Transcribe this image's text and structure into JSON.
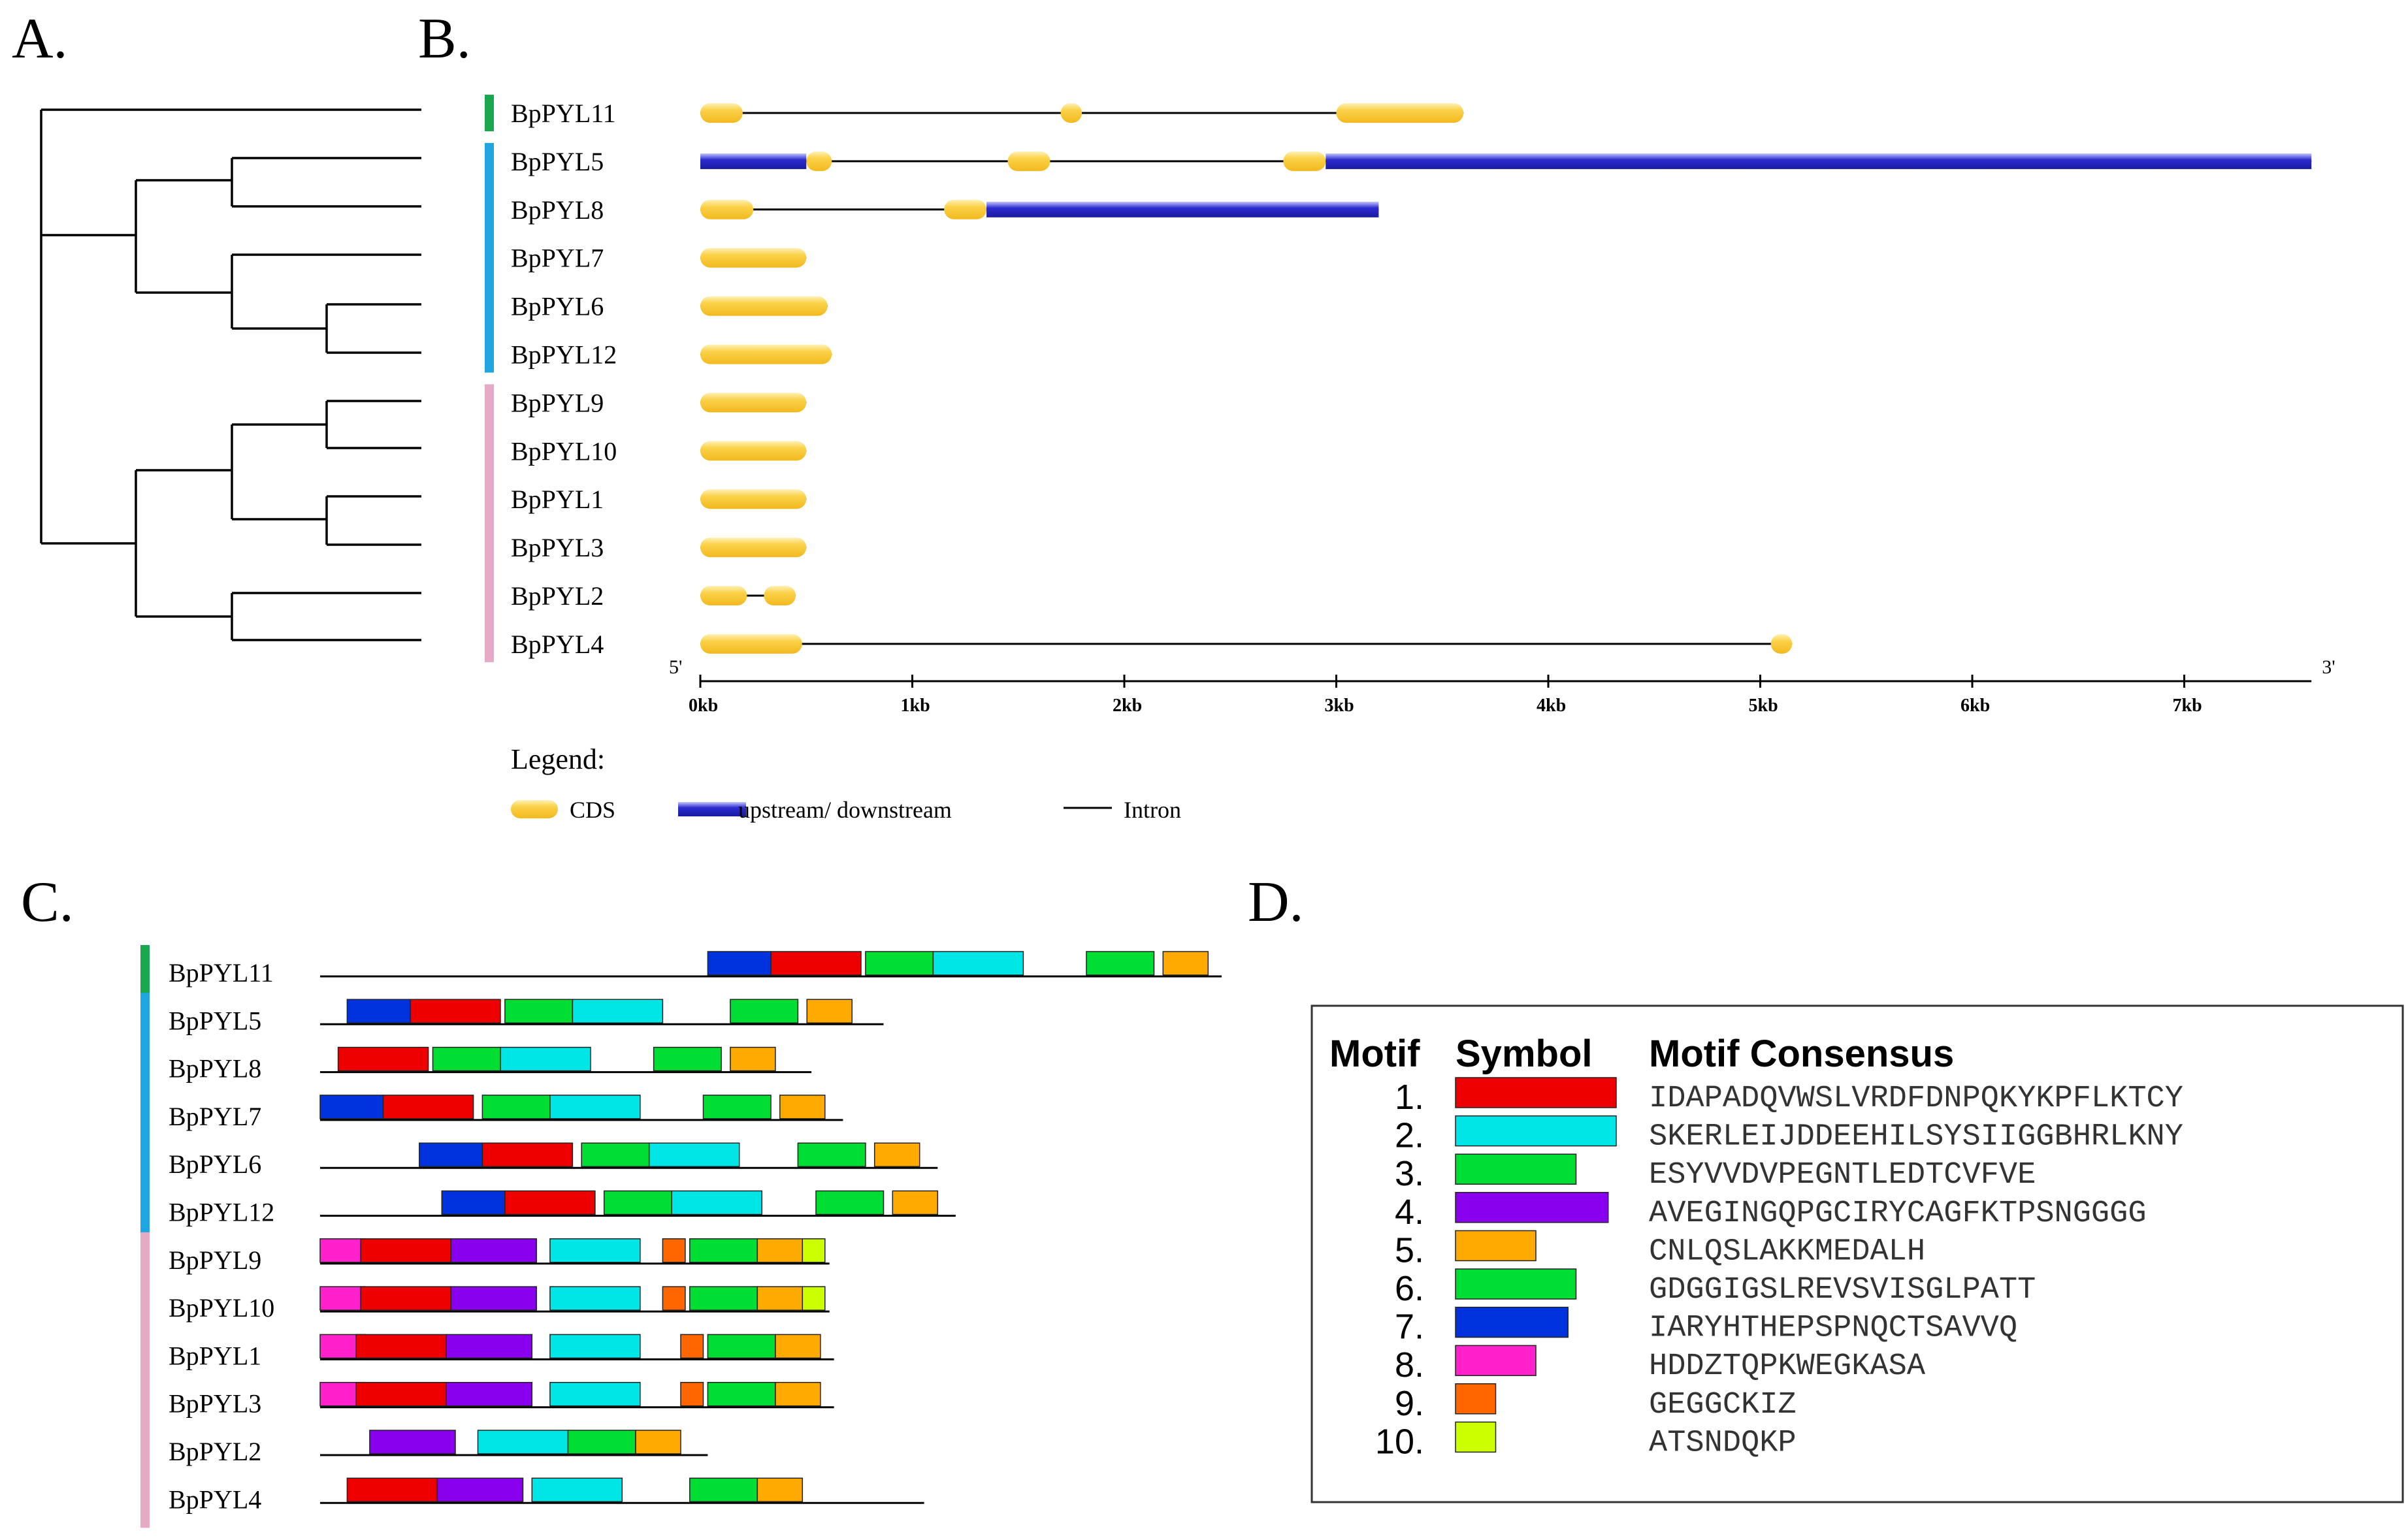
{
  "panels": {
    "a": "A.",
    "b": "B.",
    "c": "C.",
    "d": "D."
  },
  "colors": {
    "group_green": "#1aa84f",
    "group_blue": "#1fa6e0",
    "group_pink": "#e6aac7",
    "cds": "#fbd24a",
    "utr": "#2b2bd0",
    "intron": "#000000"
  },
  "genes": [
    "BpPYL11",
    "BpPYL5",
    "BpPYL8",
    "BpPYL7",
    "BpPYL6",
    "BpPYL12",
    "BpPYL9",
    "BpPYL10",
    "BpPYL1",
    "BpPYL3",
    "BpPYL2",
    "BpPYL4"
  ],
  "groups": [
    {
      "color": "#1aa84f",
      "from": 0,
      "to": 0
    },
    {
      "color": "#1fa6e0",
      "from": 1,
      "to": 5
    },
    {
      "color": "#e6aac7",
      "from": 6,
      "to": 11
    }
  ],
  "tree_newick": "(BpPYL11,(((BpPYL5,BpPYL8),(BpPYL7,(BpPYL6,BpPYL12))),(((BpPYL9,BpPYL10),(BpPYL1,BpPYL3)),(BpPYL2,BpPYL4))))",
  "gene_structure": {
    "axis": {
      "start_label": "5'",
      "end_label": "3'",
      "max_kb": 7.6,
      "ticks": [
        {
          "value": 0,
          "label": "0kb"
        },
        {
          "value": 1,
          "label": "1kb"
        },
        {
          "value": 2,
          "label": "2kb"
        },
        {
          "value": 3,
          "label": "3kb"
        },
        {
          "value": 4,
          "label": "4kb"
        },
        {
          "value": 5,
          "label": "5kb"
        },
        {
          "value": 6,
          "label": "6kb"
        },
        {
          "value": 7,
          "label": "7kb"
        }
      ]
    },
    "genes": [
      {
        "name": "BpPYL11",
        "length_kb": 3.6,
        "utr": [],
        "cds": [
          [
            0,
            0.2
          ],
          [
            1.7,
            1.8
          ],
          [
            3.0,
            3.6
          ]
        ]
      },
      {
        "name": "BpPYL5",
        "length_kb": 7.6,
        "utr": [
          [
            0,
            0.5
          ],
          [
            2.95,
            7.6
          ]
        ],
        "cds": [
          [
            0.5,
            0.62
          ],
          [
            1.45,
            1.65
          ],
          [
            2.75,
            2.95
          ]
        ]
      },
      {
        "name": "BpPYL8",
        "length_kb": 3.2,
        "utr": [
          [
            1.35,
            3.2
          ]
        ],
        "cds": [
          [
            0,
            0.25
          ],
          [
            1.15,
            1.35
          ]
        ]
      },
      {
        "name": "BpPYL7",
        "length_kb": 0.5,
        "utr": [],
        "cds": [
          [
            0,
            0.5
          ]
        ]
      },
      {
        "name": "BpPYL6",
        "length_kb": 0.6,
        "utr": [],
        "cds": [
          [
            0,
            0.6
          ]
        ]
      },
      {
        "name": "BpPYL12",
        "length_kb": 0.62,
        "utr": [],
        "cds": [
          [
            0,
            0.62
          ]
        ]
      },
      {
        "name": "BpPYL9",
        "length_kb": 0.5,
        "utr": [],
        "cds": [
          [
            0,
            0.5
          ]
        ]
      },
      {
        "name": "BpPYL10",
        "length_kb": 0.5,
        "utr": [],
        "cds": [
          [
            0,
            0.5
          ]
        ]
      },
      {
        "name": "BpPYL1",
        "length_kb": 0.5,
        "utr": [],
        "cds": [
          [
            0,
            0.5
          ]
        ]
      },
      {
        "name": "BpPYL3",
        "length_kb": 0.5,
        "utr": [],
        "cds": [
          [
            0,
            0.5
          ]
        ]
      },
      {
        "name": "BpPYL2",
        "length_kb": 0.45,
        "utr": [],
        "cds": [
          [
            0,
            0.22
          ],
          [
            0.3,
            0.45
          ]
        ]
      },
      {
        "name": "BpPYL4",
        "length_kb": 5.15,
        "utr": [],
        "cds": [
          [
            0,
            0.48
          ],
          [
            5.05,
            5.15
          ]
        ]
      }
    ]
  },
  "legend": {
    "title": "Legend:",
    "cds": "CDS",
    "utr": "upstream/ downstream",
    "intron": "Intron"
  },
  "motif_layout": {
    "max_aa": 200,
    "genes": [
      {
        "name": "BpPYL11",
        "length": 200,
        "motifs": [
          {
            "m": 7,
            "s": 86
          },
          {
            "m": 1,
            "s": 100
          },
          {
            "m": 3,
            "s": 121
          },
          {
            "m": 2,
            "s": 136
          },
          {
            "m": 3,
            "s": 170
          },
          {
            "m": 5,
            "s": 187
          }
        ]
      },
      {
        "name": "BpPYL5",
        "length": 125,
        "motifs": [
          {
            "m": 7,
            "s": 6
          },
          {
            "m": 1,
            "s": 20
          },
          {
            "m": 3,
            "s": 41
          },
          {
            "m": 2,
            "s": 56
          },
          {
            "m": 3,
            "s": 91
          },
          {
            "m": 5,
            "s": 108
          }
        ]
      },
      {
        "name": "BpPYL8",
        "length": 109,
        "motifs": [
          {
            "m": 1,
            "s": 4
          },
          {
            "m": 3,
            "s": 25
          },
          {
            "m": 2,
            "s": 40
          },
          {
            "m": 3,
            "s": 74
          },
          {
            "m": 5,
            "s": 91
          }
        ]
      },
      {
        "name": "BpPYL7",
        "length": 116,
        "motifs": [
          {
            "m": 7,
            "s": 0
          },
          {
            "m": 1,
            "s": 14
          },
          {
            "m": 3,
            "s": 36
          },
          {
            "m": 2,
            "s": 51
          },
          {
            "m": 3,
            "s": 85
          },
          {
            "m": 5,
            "s": 102
          }
        ]
      },
      {
        "name": "BpPYL6",
        "length": 137,
        "motifs": [
          {
            "m": 7,
            "s": 22
          },
          {
            "m": 1,
            "s": 36
          },
          {
            "m": 3,
            "s": 58
          },
          {
            "m": 2,
            "s": 73
          },
          {
            "m": 3,
            "s": 106
          },
          {
            "m": 5,
            "s": 123
          }
        ]
      },
      {
        "name": "BpPYL12",
        "length": 141,
        "motifs": [
          {
            "m": 7,
            "s": 27
          },
          {
            "m": 1,
            "s": 41
          },
          {
            "m": 3,
            "s": 63
          },
          {
            "m": 2,
            "s": 78
          },
          {
            "m": 3,
            "s": 110
          },
          {
            "m": 5,
            "s": 127
          }
        ]
      },
      {
        "name": "BpPYL9",
        "length": 113,
        "motifs": [
          {
            "m": 8,
            "s": 0
          },
          {
            "m": 1,
            "s": 9
          },
          {
            "m": 4,
            "s": 29
          },
          {
            "m": 2,
            "s": 51
          },
          {
            "m": 9,
            "s": 76
          },
          {
            "m": 3,
            "s": 82
          },
          {
            "m": 5,
            "s": 97
          },
          {
            "m": 10,
            "s": 107
          }
        ]
      },
      {
        "name": "BpPYL10",
        "length": 113,
        "motifs": [
          {
            "m": 8,
            "s": 0
          },
          {
            "m": 1,
            "s": 9
          },
          {
            "m": 4,
            "s": 29
          },
          {
            "m": 2,
            "s": 51
          },
          {
            "m": 9,
            "s": 76
          },
          {
            "m": 3,
            "s": 82
          },
          {
            "m": 5,
            "s": 97
          },
          {
            "m": 10,
            "s": 107
          }
        ]
      },
      {
        "name": "BpPYL1",
        "length": 114,
        "motifs": [
          {
            "m": 8,
            "s": 0
          },
          {
            "m": 1,
            "s": 8
          },
          {
            "m": 4,
            "s": 28
          },
          {
            "m": 2,
            "s": 51
          },
          {
            "m": 9,
            "s": 80
          },
          {
            "m": 3,
            "s": 86
          },
          {
            "m": 5,
            "s": 101
          }
        ]
      },
      {
        "name": "BpPYL3",
        "length": 114,
        "motifs": [
          {
            "m": 8,
            "s": 0
          },
          {
            "m": 1,
            "s": 8
          },
          {
            "m": 4,
            "s": 28
          },
          {
            "m": 2,
            "s": 51
          },
          {
            "m": 9,
            "s": 80
          },
          {
            "m": 3,
            "s": 86
          },
          {
            "m": 5,
            "s": 101
          }
        ]
      },
      {
        "name": "BpPYL2",
        "length": 86,
        "motifs": [
          {
            "m": 4,
            "s": 11
          },
          {
            "m": 2,
            "s": 35
          },
          {
            "m": 3,
            "s": 55
          },
          {
            "m": 5,
            "s": 70
          }
        ]
      },
      {
        "name": "BpPYL4",
        "length": 134,
        "motifs": [
          {
            "m": 1,
            "s": 6
          },
          {
            "m": 4,
            "s": 26
          },
          {
            "m": 2,
            "s": 47
          },
          {
            "m": 3,
            "s": 82
          },
          {
            "m": 5,
            "s": 97
          }
        ]
      }
    ]
  },
  "motif_table": {
    "headers": [
      "Motif",
      "Symbol",
      "Motif Consensus"
    ],
    "rows": [
      {
        "num": "1.",
        "color": "#ee0000",
        "width_aa": 20,
        "consensus": "IDAPADQVWSLVRDFDNPQKYKPFLKTCY"
      },
      {
        "num": "2.",
        "color": "#00e6e6",
        "width_aa": 20,
        "consensus": "SKERLEIJDDEEHILSYSIIGGBHRLKNY"
      },
      {
        "num": "3.",
        "color": "#00dd33",
        "width_aa": 15,
        "consensus": "ESYVVDVPEGNTLEDTCVFVE"
      },
      {
        "num": "4.",
        "color": "#8800ee",
        "width_aa": 19,
        "consensus": "AVEGINGQPGCIRYCAGFKTPSNGGGG"
      },
      {
        "num": "5.",
        "color": "#ffaa00",
        "width_aa": 10,
        "consensus": "CNLQSLAKKMEDALH"
      },
      {
        "num": "6.",
        "color": "#00dd33",
        "width_aa": 15,
        "consensus": "GDGGIGSLREVSVISGLPATT"
      },
      {
        "num": "7.",
        "color": "#0033dd",
        "width_aa": 14,
        "consensus": "IARYHTHEPSPNQCTSAVVQ"
      },
      {
        "num": "8.",
        "color": "#ff22cc",
        "width_aa": 10,
        "consensus": "HDDZTQPKWEGKASA"
      },
      {
        "num": "9.",
        "color": "#ff6600",
        "width_aa": 5,
        "consensus": "GEGGCKIZ"
      },
      {
        "num": "10.",
        "color": "#ccff00",
        "width_aa": 5,
        "consensus": "ATSNDQKP"
      }
    ]
  }
}
